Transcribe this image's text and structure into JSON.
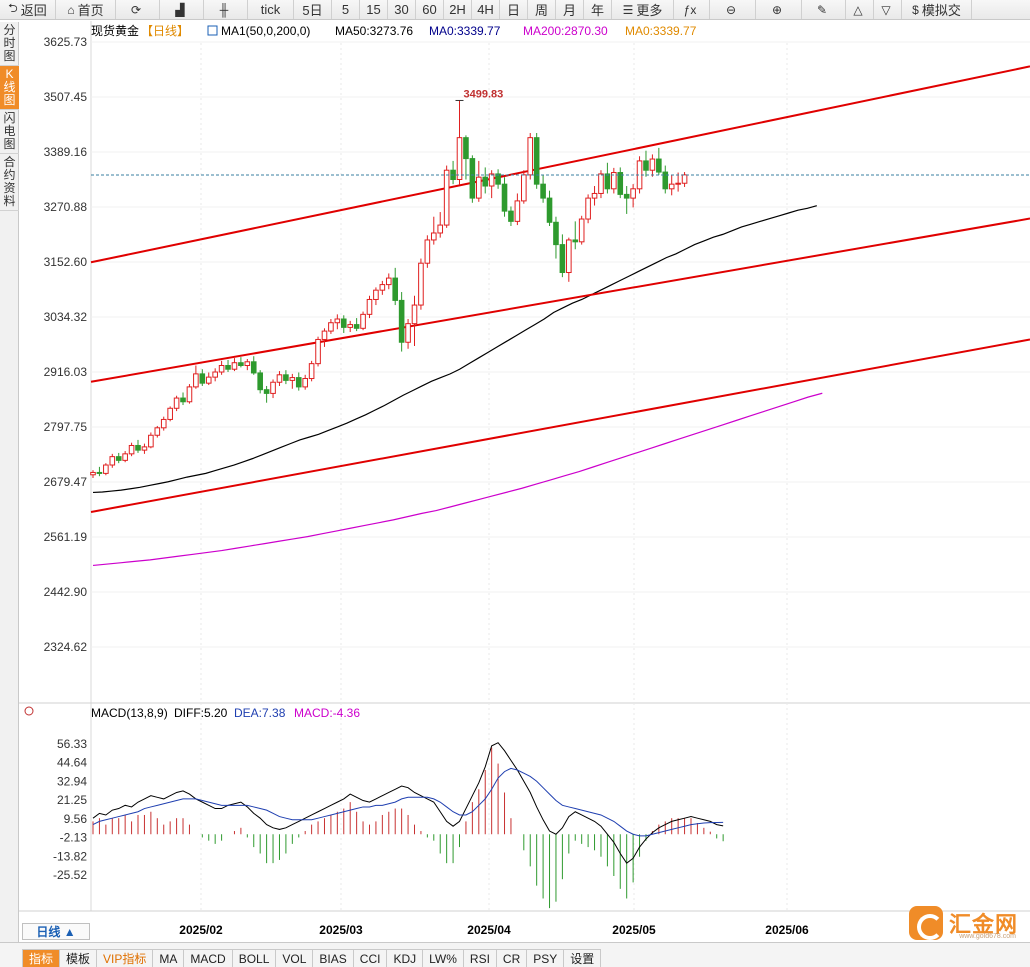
{
  "toolbar": {
    "items": [
      {
        "key": "back",
        "icon": "back-arrow-icon",
        "glyph": "⮌",
        "label": "返回"
      },
      {
        "key": "home",
        "icon": "home-icon",
        "glyph": "⌂",
        "label": "首页"
      },
      {
        "key": "refresh",
        "icon": "refresh-icon",
        "glyph": "⟳",
        "label": ""
      },
      {
        "key": "kline",
        "icon": "kline-chart-icon",
        "glyph": "▟",
        "label": ""
      },
      {
        "key": "candles",
        "icon": "candlestick-icon",
        "glyph": "╫",
        "label": ""
      },
      {
        "key": "tick",
        "icon": "",
        "glyph": "",
        "label": "tick"
      },
      {
        "key": "d5",
        "icon": "",
        "glyph": "",
        "label": "5日"
      },
      {
        "key": "m5",
        "icon": "",
        "glyph": "",
        "label": "5"
      },
      {
        "key": "m15",
        "icon": "",
        "glyph": "",
        "label": "15"
      },
      {
        "key": "m30",
        "icon": "",
        "glyph": "",
        "label": "30"
      },
      {
        "key": "m60",
        "icon": "",
        "glyph": "",
        "label": "60"
      },
      {
        "key": "h2",
        "icon": "",
        "glyph": "",
        "label": "2H"
      },
      {
        "key": "h4",
        "icon": "",
        "glyph": "",
        "label": "4H"
      },
      {
        "key": "day",
        "icon": "",
        "glyph": "",
        "label": "日"
      },
      {
        "key": "week",
        "icon": "",
        "glyph": "",
        "label": "周"
      },
      {
        "key": "month",
        "icon": "",
        "glyph": "",
        "label": "月"
      },
      {
        "key": "year",
        "icon": "",
        "glyph": "",
        "label": "年"
      },
      {
        "key": "more",
        "icon": "menu-icon",
        "glyph": "☰",
        "label": "更多"
      },
      {
        "key": "fx",
        "icon": "formula-icon",
        "glyph": "ƒx",
        "label": ""
      },
      {
        "key": "zoomout",
        "icon": "zoom-out-icon",
        "glyph": "⊖",
        "label": ""
      },
      {
        "key": "zoomin",
        "icon": "zoom-in-icon",
        "glyph": "⊕",
        "label": ""
      },
      {
        "key": "draw",
        "icon": "pencil-icon",
        "glyph": "✎",
        "label": ""
      },
      {
        "key": "up",
        "icon": "triangle-up-icon",
        "glyph": "△",
        "label": ""
      },
      {
        "key": "down",
        "icon": "triangle-down-icon",
        "glyph": "▽",
        "label": ""
      },
      {
        "key": "sim",
        "icon": "dollar-icon",
        "glyph": "$",
        "label": "模拟交"
      }
    ]
  },
  "side_tabs": [
    {
      "label": "分时图",
      "active": false
    },
    {
      "label": "K线图",
      "active": true
    },
    {
      "label": "闪电图",
      "active": false
    },
    {
      "label": "合约资料",
      "active": false
    }
  ],
  "main_chart": {
    "instrument": "现货黄金",
    "period_tag": "【日线】",
    "indicator_header": "MA1(50,0,200,0)",
    "legend": [
      {
        "label": "MA50:3273.76",
        "color": "#000000"
      },
      {
        "label": "MA0:3339.77",
        "color": "#00008b"
      },
      {
        "label": "MA200:2870.30",
        "color": "#cc00cc"
      },
      {
        "label": "MA0:3339.77",
        "color": "#e08a00"
      }
    ],
    "high_label": "3499.83",
    "y_ticks": [
      "3625.73",
      "3507.45",
      "3389.16",
      "3270.88",
      "3152.60",
      "3034.32",
      "2916.03",
      "2797.75",
      "2679.47",
      "2561.19",
      "2442.90",
      "2324.62"
    ],
    "last_price": 3339.77
  },
  "macd_panel": {
    "header": "MACD(13,8,9)",
    "diff_label": "DIFF:5.20",
    "dea_label": "DEA:7.38",
    "macd_label": "MACD:-4.36",
    "y_ticks": [
      "56.33",
      "44.64",
      "32.94",
      "21.25",
      "9.56",
      "-2.13",
      "-13.82",
      "-25.52"
    ]
  },
  "x_axis": {
    "labels": [
      "2025/02",
      "2025/03",
      "2025/04",
      "2025/05",
      "2025/06"
    ]
  },
  "bottom": {
    "period_button": "日线 ▲",
    "tabs": [
      {
        "label": "指标",
        "active": true,
        "vip": false
      },
      {
        "label": "模板",
        "active": false,
        "vip": false
      },
      {
        "label": "VIP指标",
        "active": false,
        "vip": true
      },
      {
        "label": "MA",
        "active": false,
        "vip": false
      },
      {
        "label": "MACD",
        "active": false,
        "vip": false
      },
      {
        "label": "BOLL",
        "active": false,
        "vip": false
      },
      {
        "label": "VOL",
        "active": false,
        "vip": false
      },
      {
        "label": "BIAS",
        "active": false,
        "vip": false
      },
      {
        "label": "CCI",
        "active": false,
        "vip": false
      },
      {
        "label": "KDJ",
        "active": false,
        "vip": false
      },
      {
        "label": "LW%",
        "active": false,
        "vip": false
      },
      {
        "label": "RSI",
        "active": false,
        "vip": false
      },
      {
        "label": "CR",
        "active": false,
        "vip": false
      },
      {
        "label": "PSY",
        "active": false,
        "vip": false
      },
      {
        "label": "设置",
        "active": false,
        "vip": false
      }
    ]
  },
  "logo": {
    "text": "汇金网",
    "sub": "www.gold678.com"
  },
  "colors": {
    "up": "#e02020",
    "down": "#2e9a2e",
    "trend": "#e00000",
    "ma50": "#000000",
    "ma200": "#cc00cc",
    "dea": "#1f3fb0",
    "diff": "#000000"
  },
  "chart_data": {
    "type": "candlestick",
    "price_range": [
      2324.62,
      3625.73
    ],
    "candles": [
      {
        "o": 2695,
        "h": 2705,
        "l": 2688,
        "c": 2700
      },
      {
        "o": 2700,
        "h": 2712,
        "l": 2692,
        "c": 2698
      },
      {
        "o": 2698,
        "h": 2720,
        "l": 2694,
        "c": 2716
      },
      {
        "o": 2716,
        "h": 2740,
        "l": 2710,
        "c": 2734
      },
      {
        "o": 2734,
        "h": 2742,
        "l": 2720,
        "c": 2726
      },
      {
        "o": 2726,
        "h": 2746,
        "l": 2722,
        "c": 2740
      },
      {
        "o": 2740,
        "h": 2764,
        "l": 2735,
        "c": 2758
      },
      {
        "o": 2758,
        "h": 2770,
        "l": 2742,
        "c": 2748
      },
      {
        "o": 2748,
        "h": 2762,
        "l": 2740,
        "c": 2755
      },
      {
        "o": 2755,
        "h": 2786,
        "l": 2752,
        "c": 2780
      },
      {
        "o": 2780,
        "h": 2800,
        "l": 2775,
        "c": 2796
      },
      {
        "o": 2796,
        "h": 2820,
        "l": 2790,
        "c": 2814
      },
      {
        "o": 2814,
        "h": 2842,
        "l": 2810,
        "c": 2838
      },
      {
        "o": 2838,
        "h": 2865,
        "l": 2832,
        "c": 2860
      },
      {
        "o": 2860,
        "h": 2872,
        "l": 2845,
        "c": 2852
      },
      {
        "o": 2852,
        "h": 2890,
        "l": 2848,
        "c": 2884
      },
      {
        "o": 2884,
        "h": 2930,
        "l": 2880,
        "c": 2912
      },
      {
        "o": 2912,
        "h": 2922,
        "l": 2886,
        "c": 2892
      },
      {
        "o": 2892,
        "h": 2915,
        "l": 2888,
        "c": 2905
      },
      {
        "o": 2905,
        "h": 2924,
        "l": 2896,
        "c": 2916
      },
      {
        "o": 2916,
        "h": 2940,
        "l": 2910,
        "c": 2930
      },
      {
        "o": 2930,
        "h": 2942,
        "l": 2916,
        "c": 2922
      },
      {
        "o": 2922,
        "h": 2946,
        "l": 2918,
        "c": 2936
      },
      {
        "o": 2936,
        "h": 2948,
        "l": 2926,
        "c": 2930
      },
      {
        "o": 2930,
        "h": 2944,
        "l": 2920,
        "c": 2938
      },
      {
        "o": 2938,
        "h": 2950,
        "l": 2910,
        "c": 2914
      },
      {
        "o": 2914,
        "h": 2920,
        "l": 2870,
        "c": 2878
      },
      {
        "o": 2878,
        "h": 2886,
        "l": 2850,
        "c": 2870
      },
      {
        "o": 2870,
        "h": 2900,
        "l": 2860,
        "c": 2894
      },
      {
        "o": 2894,
        "h": 2918,
        "l": 2886,
        "c": 2910
      },
      {
        "o": 2910,
        "h": 2920,
        "l": 2890,
        "c": 2898
      },
      {
        "o": 2898,
        "h": 2912,
        "l": 2880,
        "c": 2904
      },
      {
        "o": 2904,
        "h": 2915,
        "l": 2876,
        "c": 2884
      },
      {
        "o": 2884,
        "h": 2910,
        "l": 2878,
        "c": 2902
      },
      {
        "o": 2902,
        "h": 2940,
        "l": 2896,
        "c": 2934
      },
      {
        "o": 2934,
        "h": 2992,
        "l": 2928,
        "c": 2986
      },
      {
        "o": 2986,
        "h": 3010,
        "l": 2970,
        "c": 3004
      },
      {
        "o": 3004,
        "h": 3030,
        "l": 2998,
        "c": 3022
      },
      {
        "o": 3022,
        "h": 3040,
        "l": 3008,
        "c": 3030
      },
      {
        "o": 3030,
        "h": 3038,
        "l": 3000,
        "c": 3012
      },
      {
        "o": 3012,
        "h": 3026,
        "l": 3002,
        "c": 3018
      },
      {
        "o": 3018,
        "h": 3032,
        "l": 3004,
        "c": 3010
      },
      {
        "o": 3010,
        "h": 3046,
        "l": 3006,
        "c": 3040
      },
      {
        "o": 3040,
        "h": 3080,
        "l": 3032,
        "c": 3072
      },
      {
        "o": 3072,
        "h": 3098,
        "l": 3060,
        "c": 3092
      },
      {
        "o": 3092,
        "h": 3112,
        "l": 3082,
        "c": 3104
      },
      {
        "o": 3104,
        "h": 3128,
        "l": 3094,
        "c": 3118
      },
      {
        "o": 3118,
        "h": 3140,
        "l": 3060,
        "c": 3070
      },
      {
        "o": 3070,
        "h": 3088,
        "l": 2960,
        "c": 2980
      },
      {
        "o": 2980,
        "h": 3030,
        "l": 2966,
        "c": 3020
      },
      {
        "o": 3020,
        "h": 3080,
        "l": 2972,
        "c": 3060
      },
      {
        "o": 3060,
        "h": 3160,
        "l": 3050,
        "c": 3150
      },
      {
        "o": 3150,
        "h": 3210,
        "l": 3140,
        "c": 3200
      },
      {
        "o": 3200,
        "h": 3250,
        "l": 3190,
        "c": 3215
      },
      {
        "o": 3215,
        "h": 3260,
        "l": 3205,
        "c": 3232
      },
      {
        "o": 3232,
        "h": 3360,
        "l": 3226,
        "c": 3350
      },
      {
        "o": 3350,
        "h": 3370,
        "l": 3320,
        "c": 3330
      },
      {
        "o": 3330,
        "h": 3500,
        "l": 3318,
        "c": 3420
      },
      {
        "o": 3420,
        "h": 3425,
        "l": 3330,
        "c": 3375
      },
      {
        "o": 3375,
        "h": 3382,
        "l": 3280,
        "c": 3290
      },
      {
        "o": 3290,
        "h": 3370,
        "l": 3282,
        "c": 3335
      },
      {
        "o": 3335,
        "h": 3356,
        "l": 3300,
        "c": 3316
      },
      {
        "o": 3316,
        "h": 3350,
        "l": 3290,
        "c": 3342
      },
      {
        "o": 3342,
        "h": 3352,
        "l": 3310,
        "c": 3320
      },
      {
        "o": 3320,
        "h": 3335,
        "l": 3250,
        "c": 3262
      },
      {
        "o": 3262,
        "h": 3272,
        "l": 3230,
        "c": 3240
      },
      {
        "o": 3240,
        "h": 3300,
        "l": 3232,
        "c": 3284
      },
      {
        "o": 3284,
        "h": 3350,
        "l": 3278,
        "c": 3340
      },
      {
        "o": 3340,
        "h": 3430,
        "l": 3330,
        "c": 3420
      },
      {
        "o": 3420,
        "h": 3430,
        "l": 3310,
        "c": 3320
      },
      {
        "o": 3320,
        "h": 3340,
        "l": 3280,
        "c": 3290
      },
      {
        "o": 3290,
        "h": 3306,
        "l": 3230,
        "c": 3238
      },
      {
        "o": 3238,
        "h": 3250,
        "l": 3160,
        "c": 3190
      },
      {
        "o": 3190,
        "h": 3212,
        "l": 3120,
        "c": 3130
      },
      {
        "o": 3130,
        "h": 3205,
        "l": 3110,
        "c": 3200
      },
      {
        "o": 3200,
        "h": 3240,
        "l": 3180,
        "c": 3196
      },
      {
        "o": 3196,
        "h": 3252,
        "l": 3190,
        "c": 3245
      },
      {
        "o": 3245,
        "h": 3298,
        "l": 3236,
        "c": 3290
      },
      {
        "o": 3290,
        "h": 3316,
        "l": 3274,
        "c": 3300
      },
      {
        "o": 3300,
        "h": 3350,
        "l": 3290,
        "c": 3342
      },
      {
        "o": 3342,
        "h": 3366,
        "l": 3300,
        "c": 3310
      },
      {
        "o": 3310,
        "h": 3355,
        "l": 3300,
        "c": 3345
      },
      {
        "o": 3345,
        "h": 3356,
        "l": 3290,
        "c": 3298
      },
      {
        "o": 3298,
        "h": 3316,
        "l": 3256,
        "c": 3290
      },
      {
        "o": 3290,
        "h": 3320,
        "l": 3270,
        "c": 3310
      },
      {
        "o": 3310,
        "h": 3380,
        "l": 3300,
        "c": 3370
      },
      {
        "o": 3370,
        "h": 3392,
        "l": 3336,
        "c": 3350
      },
      {
        "o": 3350,
        "h": 3384,
        "l": 3336,
        "c": 3374
      },
      {
        "o": 3374,
        "h": 3398,
        "l": 3340,
        "c": 3346
      },
      {
        "o": 3346,
        "h": 3360,
        "l": 3300,
        "c": 3310
      },
      {
        "o": 3310,
        "h": 3340,
        "l": 3296,
        "c": 3320
      },
      {
        "o": 3320,
        "h": 3345,
        "l": 3304,
        "c": 3322
      },
      {
        "o": 3322,
        "h": 3346,
        "l": 3314,
        "c": 3340
      }
    ],
    "trend_lines": [
      {
        "p1": [
          0,
          3152
        ],
        "p2": [
          110,
          3470
        ]
      },
      {
        "p1": [
          0,
          2895
        ],
        "p2": [
          110,
          3160
        ]
      },
      {
        "p1": [
          0,
          2615
        ],
        "p2": [
          110,
          2895
        ]
      }
    ],
    "ma50": [
      2657,
      2658,
      2660,
      2662,
      2665,
      2668,
      2672,
      2676,
      2680,
      2685,
      2690,
      2694,
      2698,
      2704,
      2710,
      2716,
      2723,
      2730,
      2738,
      2746,
      2754,
      2762,
      2770,
      2776,
      2782,
      2790,
      2798,
      2806,
      2815,
      2824,
      2834,
      2844,
      2855,
      2866,
      2876,
      2886,
      2896,
      2904,
      2912,
      2922,
      2934,
      2946,
      2958,
      2970,
      2982,
      2994,
      3006,
      3018,
      3030,
      3044,
      3054,
      3064,
      3072,
      3082,
      3092,
      3102,
      3112,
      3122,
      3132,
      3142,
      3152,
      3162,
      3170,
      3180,
      3190,
      3198,
      3206,
      3212,
      3220,
      3228,
      3234,
      3240,
      3246,
      3252,
      3258,
      3264,
      3268,
      3273.76
    ],
    "ma200": [
      2500,
      2503,
      2506,
      2509,
      2512,
      2516,
      2520,
      2524,
      2528,
      2532,
      2537,
      2542,
      2547,
      2552,
      2557,
      2562,
      2568,
      2574,
      2580,
      2586,
      2592,
      2598,
      2605,
      2612,
      2618,
      2626,
      2634,
      2642,
      2650,
      2658,
      2666,
      2675,
      2684,
      2693,
      2702,
      2712,
      2722,
      2732,
      2742,
      2752,
      2762,
      2772,
      2782,
      2792,
      2802,
      2812,
      2822,
      2832,
      2842,
      2852,
      2862,
      2870.3
    ],
    "macd": {
      "range": [
        -37.21,
        68.02
      ],
      "diff": [
        10,
        13,
        12,
        15,
        16,
        18,
        17,
        20,
        22,
        24,
        23,
        22,
        24,
        26,
        27,
        25,
        22,
        20,
        18,
        16,
        16,
        18,
        19,
        20,
        17,
        13,
        10,
        6,
        4,
        3,
        4,
        6,
        8,
        10,
        12,
        14,
        16,
        18,
        20,
        22,
        25,
        23,
        21,
        20,
        22,
        24,
        26,
        28,
        30,
        29,
        26,
        24,
        22,
        20,
        14,
        8,
        5,
        8,
        16,
        24,
        32,
        42,
        55,
        57,
        52,
        46,
        40,
        33,
        26,
        17,
        9,
        2,
        0,
        4,
        11,
        14,
        12,
        10,
        8,
        5,
        0,
        -5,
        -12,
        -18,
        -15,
        -8,
        -3,
        1,
        4,
        6,
        8,
        9,
        10,
        11,
        10,
        9,
        8,
        6,
        5.2
      ],
      "dea": [
        6,
        8,
        9,
        10,
        11,
        12,
        13,
        14,
        16,
        17,
        18,
        19,
        20,
        21,
        22,
        22,
        22,
        21,
        20,
        19,
        18,
        18,
        18,
        18,
        18,
        17,
        16,
        15,
        13,
        11,
        10,
        9,
        9,
        9,
        9,
        10,
        11,
        12,
        13,
        14,
        15,
        16,
        17,
        17,
        18,
        18,
        19,
        20,
        22,
        23,
        23,
        23,
        23,
        22,
        20,
        17,
        14,
        12,
        12,
        14,
        18,
        22,
        28,
        35,
        39,
        41,
        40,
        38,
        36,
        33,
        29,
        25,
        21,
        18,
        17,
        16,
        15,
        14,
        13,
        12,
        10,
        8,
        5,
        2,
        0,
        -1,
        -1,
        0,
        1,
        2,
        3,
        4,
        5,
        6,
        6.5,
        7,
        7.2,
        7.3,
        7.38
      ],
      "hist_up_color": "#c83232",
      "hist_down_color": "#2e9a2e"
    }
  }
}
